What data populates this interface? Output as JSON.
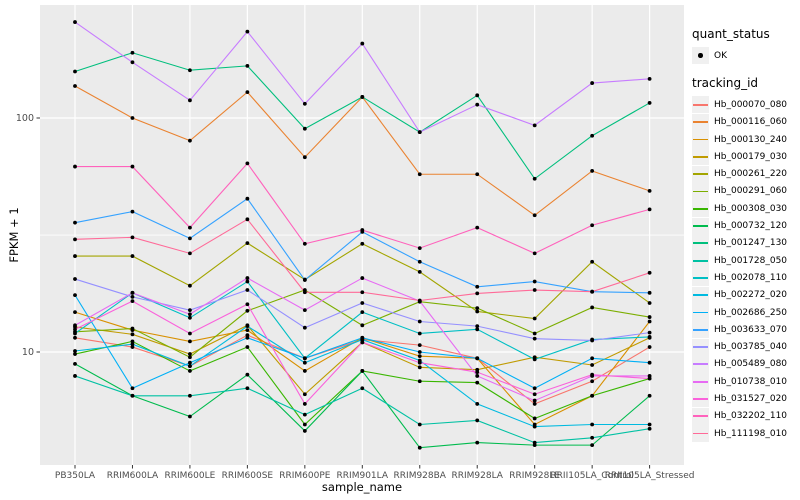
{
  "chart_data": {
    "type": "line",
    "title": "",
    "xlabel": "sample_name",
    "ylabel": "FPKM + 1",
    "y_scale": "log10",
    "y_ticks": [
      10,
      100
    ],
    "y_minor_ticks": [
      31.6
    ],
    "ylim": [
      3.4,
      300
    ],
    "grid": true,
    "legend_position": "right",
    "x_categories": [
      "PB350LA",
      "RRIM600LA",
      "RRIM600LE",
      "RRIM600SE",
      "RRIM600PE",
      "RRIM901LA",
      "RRIM928BA",
      "RRIM928LA",
      "RRIM928LE",
      "RRII105LA_Control",
      "RRII105LA_Stressed"
    ],
    "series": [
      {
        "tracking_id": "Hb_000070_080",
        "color": "#F8766D",
        "quant_status": "OK",
        "values": [
          11.5,
          10.5,
          8.7,
          11.8,
          9.4,
          11.3,
          10.7,
          9.4,
          6.0,
          7.5,
          10.5
        ]
      },
      {
        "tracking_id": "Hb_000116_060",
        "color": "#EA8331",
        "quant_status": "OK",
        "values": [
          137,
          100,
          80,
          129,
          68,
          123,
          57.5,
          57.5,
          38.4,
          59.4,
          48.8
        ]
      },
      {
        "tracking_id": "Hb_000130_240",
        "color": "#D89000",
        "quant_status": "OK",
        "values": [
          14.8,
          12.4,
          11.1,
          12.4,
          8.3,
          11.5,
          9.6,
          9.4,
          4.9,
          6.5,
          13.5
        ]
      },
      {
        "tracking_id": "Hb_000179_030",
        "color": "#C09B00",
        "quant_status": "OK",
        "values": [
          12.8,
          11.9,
          9.8,
          13.0,
          6.6,
          11.0,
          8.6,
          8.4,
          9.5,
          8.8,
          11.5
        ]
      },
      {
        "tracking_id": "Hb_000261_220",
        "color": "#A3A500",
        "quant_status": "OK",
        "values": [
          25.7,
          25.7,
          19.2,
          29.2,
          20.4,
          29.0,
          22.0,
          14.9,
          13.9,
          24.3,
          16.2
        ]
      },
      {
        "tracking_id": "Hb_000291_060",
        "color": "#7CAE00",
        "quant_status": "OK",
        "values": [
          12.2,
          12.6,
          9.5,
          15.0,
          18.4,
          13.0,
          16.4,
          15.4,
          12.0,
          15.5,
          14.1
        ]
      },
      {
        "tracking_id": "Hb_000308_030",
        "color": "#39B600",
        "quant_status": "OK",
        "values": [
          9.8,
          11.1,
          8.3,
          10.5,
          4.9,
          8.3,
          7.5,
          7.4,
          5.2,
          6.5,
          7.7
        ]
      },
      {
        "tracking_id": "Hb_000732_120",
        "color": "#00BB4E",
        "quant_status": "OK",
        "values": [
          8.9,
          6.5,
          5.3,
          8.0,
          4.6,
          8.3,
          3.9,
          4.1,
          4.0,
          4.0,
          6.5
        ]
      },
      {
        "tracking_id": "Hb_001247_130",
        "color": "#00BF7D",
        "quant_status": "OK",
        "values": [
          158,
          190,
          160,
          167,
          90,
          123,
          87,
          125,
          55,
          84,
          116
        ]
      },
      {
        "tracking_id": "Hb_001728_050",
        "color": "#00C1A3",
        "quant_status": "OK",
        "values": [
          7.9,
          6.5,
          6.5,
          7.0,
          5.4,
          7.0,
          4.9,
          5.1,
          4.1,
          4.3,
          4.7
        ]
      },
      {
        "tracking_id": "Hb_002078_110",
        "color": "#00BFC4",
        "quant_status": "OK",
        "values": [
          12.0,
          17.9,
          14.0,
          20.0,
          9.4,
          14.8,
          12.0,
          12.5,
          9.3,
          11.3,
          11.6
        ]
      },
      {
        "tracking_id": "Hb_002272_020",
        "color": "#00BAE0",
        "quant_status": "OK",
        "values": [
          10.1,
          10.8,
          8.7,
          12.9,
          9.0,
          11.3,
          9.2,
          6.0,
          4.8,
          4.9,
          4.9
        ]
      },
      {
        "tracking_id": "Hb_002686_250",
        "color": "#00B0F6",
        "quant_status": "OK",
        "values": [
          17.5,
          7.0,
          9.0,
          11.5,
          9.4,
          11.5,
          10.0,
          9.4,
          7.0,
          9.4,
          9.0
        ]
      },
      {
        "tracking_id": "Hb_003633_070",
        "color": "#35A2FF",
        "quant_status": "OK",
        "values": [
          35.7,
          39.8,
          30.6,
          45.2,
          20.3,
          32.6,
          24.3,
          19.0,
          20.0,
          18.1,
          17.9
        ]
      },
      {
        "tracking_id": "Hb_003785_040",
        "color": "#9590FF",
        "quant_status": "OK",
        "values": [
          20.5,
          17.2,
          15.1,
          18.4,
          12.7,
          16.2,
          13.5,
          12.9,
          11.4,
          11.2,
          12.1
        ]
      },
      {
        "tracking_id": "Hb_005489_080",
        "color": "#C77CFF",
        "quant_status": "OK",
        "values": [
          257,
          173,
          119,
          234,
          115,
          208,
          87,
          114,
          93,
          141,
          147
        ]
      },
      {
        "tracking_id": "Hb_010738_010",
        "color": "#E76BF3",
        "quant_status": "OK",
        "values": [
          13.0,
          17.9,
          14.5,
          20.7,
          15.1,
          20.7,
          16.5,
          7.9,
          6.2,
          7.9,
          7.9
        ]
      },
      {
        "tracking_id": "Hb_031527_020",
        "color": "#FA62DB",
        "quant_status": "OK",
        "values": [
          12.5,
          16.5,
          12.0,
          16.0,
          6.0,
          11.0,
          9.0,
          8.2,
          6.6,
          8.0,
          7.7
        ]
      },
      {
        "tracking_id": "Hb_032202_110",
        "color": "#FF62BC",
        "quant_status": "OK",
        "values": [
          62,
          62,
          34,
          64,
          29,
          33.2,
          27.8,
          34,
          26.4,
          34.8,
          40.7
        ]
      },
      {
        "tracking_id": "Hb_111198_010",
        "color": "#FF6A98",
        "quant_status": "OK",
        "values": [
          30.3,
          30.9,
          26.4,
          36.9,
          18.0,
          18.0,
          16.6,
          17.8,
          18.4,
          18.1,
          21.8
        ]
      }
    ],
    "legend": {
      "quant_status_title": "quant_status",
      "quant_status_items": [
        "OK"
      ],
      "tracking_id_title": "tracking_id"
    }
  },
  "colors": {
    "panel_bg": "#EBEBEB",
    "grid": "#FFFFFF",
    "tick": "#333333",
    "tick_label": "#4D4D4D",
    "point": "#000000",
    "legend_key_bg": "#F0F0F0"
  }
}
